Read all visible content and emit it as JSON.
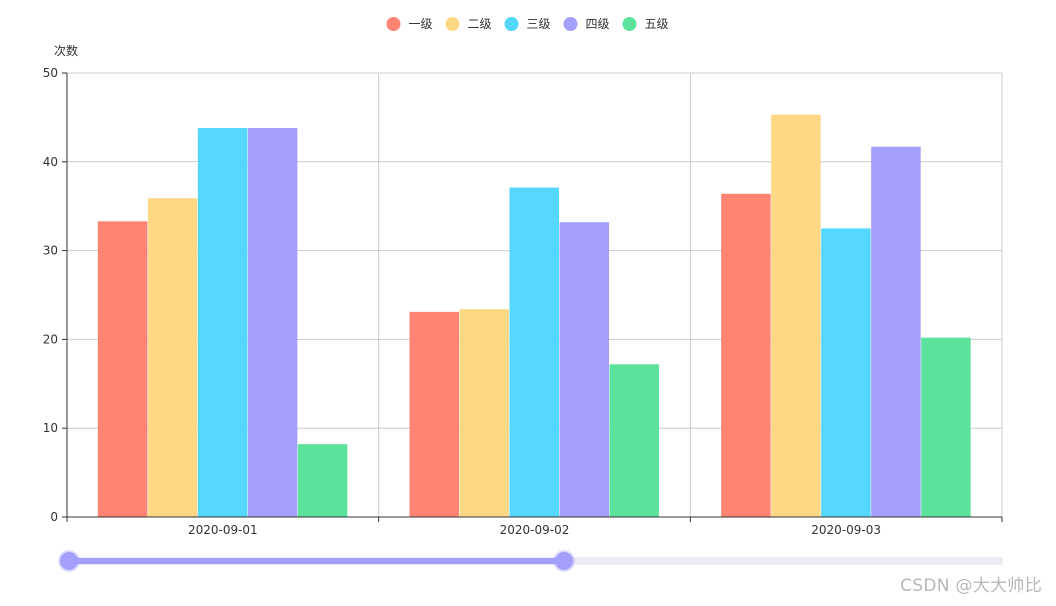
{
  "chart_data": {
    "type": "bar",
    "categories": [
      "2020-09-01",
      "2020-09-02",
      "2020-09-03"
    ],
    "series": [
      {
        "name": "一级",
        "color": "#ff8473",
        "values": [
          33.3,
          23.1,
          36.4
        ]
      },
      {
        "name": "二级",
        "color": "#fed885",
        "values": [
          35.9,
          23.4,
          45.3
        ]
      },
      {
        "name": "三级",
        "color": "#54d8ff",
        "values": [
          43.8,
          37.1,
          32.5
        ]
      },
      {
        "name": "四级",
        "color": "#a49ffb",
        "values": [
          43.8,
          33.2,
          41.7
        ]
      },
      {
        "name": "五级",
        "color": "#5de29c",
        "values": [
          8.2,
          17.2,
          20.2
        ]
      }
    ],
    "ylabel": "次数",
    "ylim": [
      0,
      50
    ],
    "yticks": [
      0,
      10,
      20,
      30,
      40,
      50
    ],
    "grid": true,
    "legend": "top-center"
  },
  "slider": {
    "range_start": 0,
    "range_end": 0.53,
    "color": "#a49ffb"
  },
  "watermark": "CSDN @大大帅比"
}
